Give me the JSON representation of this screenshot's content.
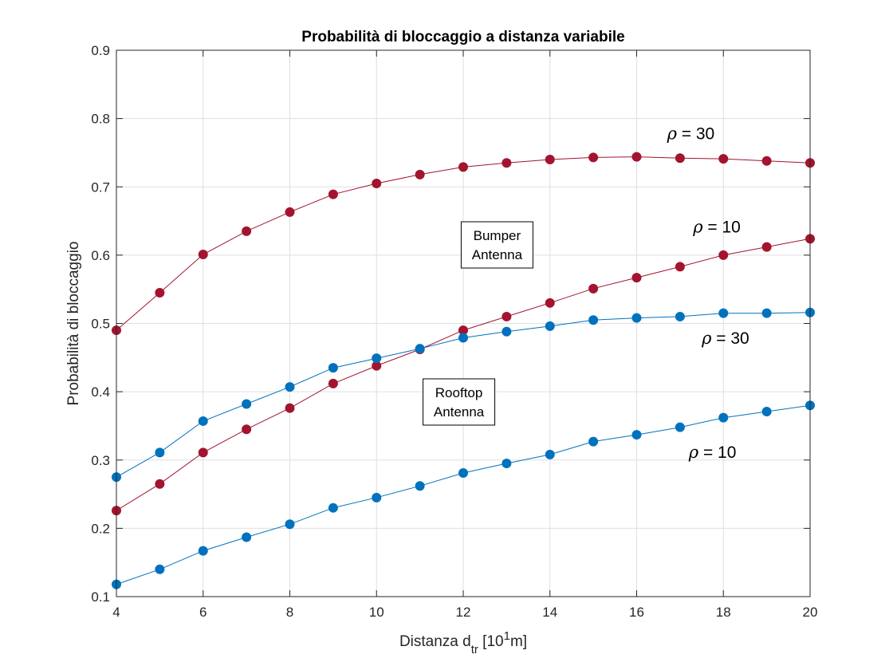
{
  "chart_data": {
    "type": "line",
    "title": "Probabilità di bloccaggio a distanza variabile",
    "xlabel_main": "Distanza d",
    "xlabel_sub": "tr",
    "xlabel_pre": " [10",
    "xlabel_sup": "1",
    "xlabel_post": "m]",
    "ylabel": "Probabilità di bloccaggio",
    "xlim": [
      4,
      20
    ],
    "ylim": [
      0.1,
      0.9
    ],
    "grid": true,
    "x_ticks": [
      "4",
      "6",
      "8",
      "10",
      "12",
      "14",
      "16",
      "18",
      "20"
    ],
    "y_ticks": [
      "0.1",
      "0.2",
      "0.3",
      "0.4",
      "0.5",
      "0.6",
      "0.7",
      "0.8",
      "0.9"
    ],
    "x": [
      4,
      5,
      6,
      7,
      8,
      9,
      10,
      11,
      12,
      13,
      14,
      15,
      16,
      17,
      18,
      19,
      20
    ],
    "series": [
      {
        "color": "#a2142f",
        "values": [
          0.49,
          0.545,
          0.601,
          0.635,
          0.663,
          0.689,
          0.705,
          0.718,
          0.729,
          0.735,
          0.74,
          0.743,
          0.744,
          0.742,
          0.741,
          0.738,
          0.735
        ]
      },
      {
        "color": "#a2142f",
        "values": [
          0.226,
          0.265,
          0.311,
          0.345,
          0.376,
          0.412,
          0.438,
          0.462,
          0.49,
          0.51,
          0.53,
          0.551,
          0.567,
          0.583,
          0.6,
          0.612,
          0.624
        ]
      },
      {
        "color": "#0072bd",
        "values": [
          0.275,
          0.311,
          0.357,
          0.382,
          0.407,
          0.435,
          0.449,
          0.463,
          0.479,
          0.488,
          0.496,
          0.505,
          0.508,
          0.51,
          0.515,
          0.515,
          0.516
        ]
      },
      {
        "color": "#0072bd",
        "values": [
          0.118,
          0.14,
          0.167,
          0.187,
          0.206,
          0.23,
          0.245,
          0.262,
          0.281,
          0.295,
          0.308,
          0.327,
          0.337,
          0.348,
          0.362,
          0.371,
          0.38
        ]
      }
    ],
    "annotations": [
      {
        "sym": "ρ",
        "text": " = 30",
        "x": 16.7,
        "y": 0.77
      },
      {
        "sym": "ρ",
        "text": " = 10",
        "x": 17.3,
        "y": 0.633
      },
      {
        "sym": "ρ",
        "text": " = 30",
        "x": 17.5,
        "y": 0.47
      },
      {
        "sym": "ρ",
        "text": " = 10",
        "x": 17.2,
        "y": 0.303
      }
    ],
    "text_boxes": [
      {
        "lines": [
          "Bumper",
          "Antenna"
        ],
        "x": 12.78,
        "y": 0.615
      },
      {
        "lines": [
          "Rooftop",
          "Antenna"
        ],
        "x": 11.9,
        "y": 0.385
      }
    ]
  }
}
